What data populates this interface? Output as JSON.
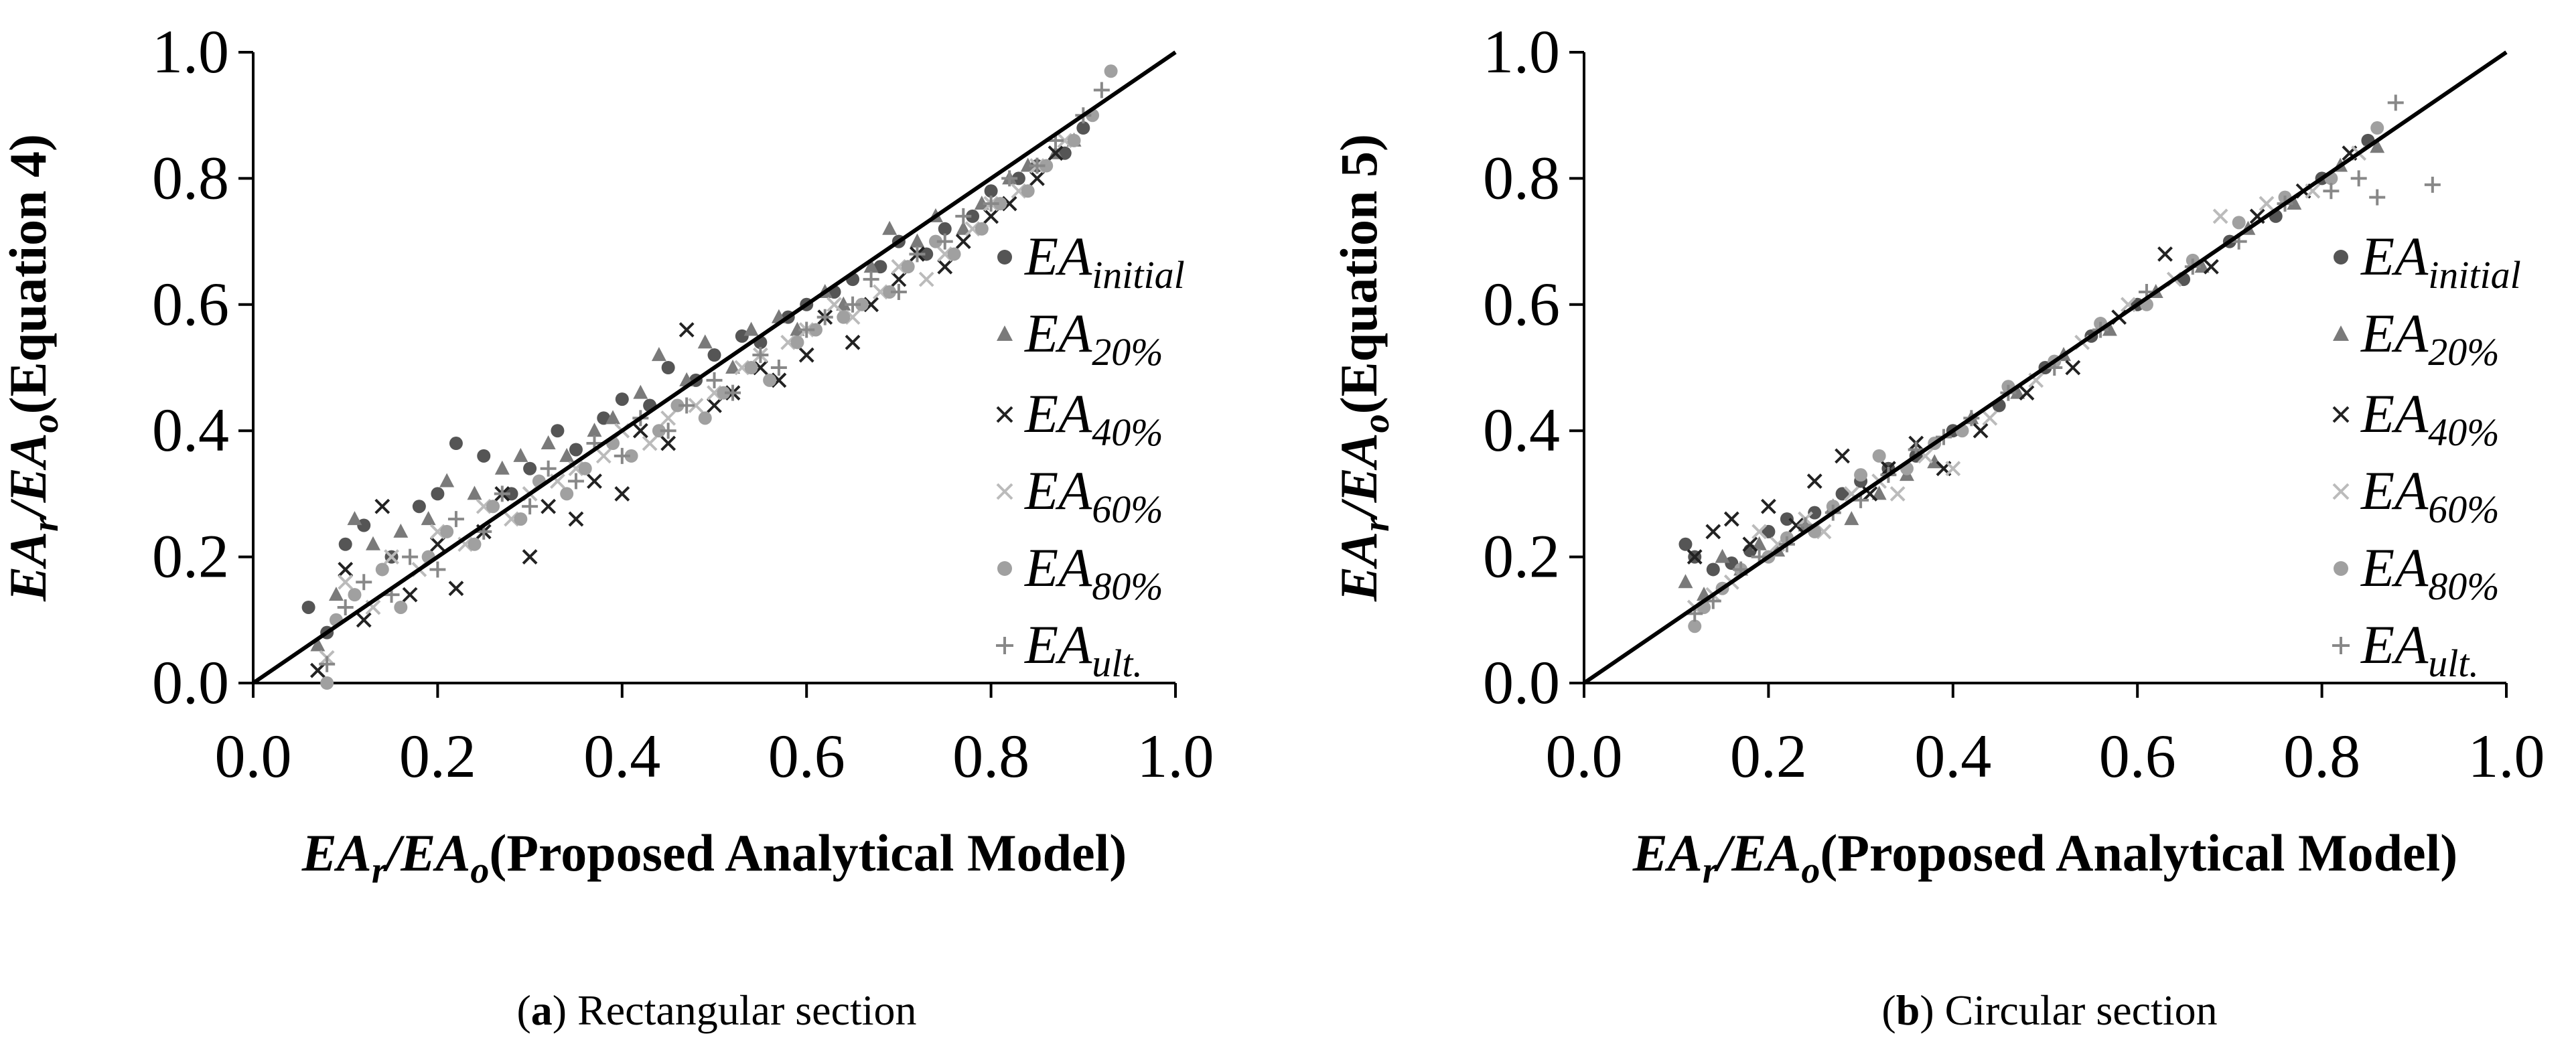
{
  "chart_data": [
    {
      "type": "scatter",
      "panel_label": "a",
      "caption": "Rectangular section",
      "xlabel_main": "EA",
      "xlabel_sub_r": "r",
      "xlabel_sub_o": "o",
      "xlabel_suffix": "(Proposed Analytical Model)",
      "ylabel_main": "EA",
      "ylabel_suffix": "(Equation 4)",
      "xlim": [
        0.0,
        1.0
      ],
      "ylim": [
        0.0,
        1.0
      ],
      "x_ticks": [
        "0.0",
        "0.2",
        "0.4",
        "0.6",
        "0.8",
        "1.0"
      ],
      "y_ticks": [
        "0.0",
        "0.2",
        "0.4",
        "0.6",
        "0.8",
        "1.0"
      ],
      "reference_line": {
        "name": "1:1 line",
        "x": [
          0.0,
          1.0
        ],
        "y": [
          0.0,
          1.0
        ]
      },
      "series": [
        {
          "name": "EA_initial",
          "label_main": "EA",
          "label_sub": "initial",
          "marker": "dot",
          "color": "#555555",
          "x": [
            0.06,
            0.08,
            0.1,
            0.12,
            0.15,
            0.18,
            0.2,
            0.22,
            0.25,
            0.28,
            0.3,
            0.33,
            0.35,
            0.38,
            0.4,
            0.43,
            0.45,
            0.48,
            0.5,
            0.53,
            0.55,
            0.58,
            0.6,
            0.63,
            0.65,
            0.68,
            0.7,
            0.73,
            0.75,
            0.78,
            0.8,
            0.83,
            0.85,
            0.88,
            0.9
          ],
          "y": [
            0.12,
            0.08,
            0.22,
            0.25,
            0.2,
            0.28,
            0.3,
            0.38,
            0.36,
            0.3,
            0.34,
            0.4,
            0.37,
            0.42,
            0.45,
            0.44,
            0.5,
            0.48,
            0.52,
            0.55,
            0.54,
            0.58,
            0.6,
            0.62,
            0.64,
            0.66,
            0.7,
            0.68,
            0.72,
            0.74,
            0.78,
            0.8,
            0.82,
            0.84,
            0.88
          ]
        },
        {
          "name": "EA_20%",
          "label_main": "EA",
          "label_sub": "20%",
          "marker": "triangle",
          "color": "#7a7a7a",
          "x": [
            0.07,
            0.09,
            0.11,
            0.13,
            0.16,
            0.19,
            0.21,
            0.24,
            0.27,
            0.29,
            0.32,
            0.34,
            0.37,
            0.39,
            0.42,
            0.44,
            0.47,
            0.49,
            0.52,
            0.54,
            0.57,
            0.59,
            0.62,
            0.64,
            0.67,
            0.69,
            0.72,
            0.74,
            0.77,
            0.79,
            0.82,
            0.84,
            0.87,
            0.89
          ],
          "y": [
            0.06,
            0.14,
            0.26,
            0.22,
            0.24,
            0.26,
            0.32,
            0.3,
            0.34,
            0.36,
            0.38,
            0.36,
            0.4,
            0.42,
            0.46,
            0.52,
            0.48,
            0.54,
            0.5,
            0.56,
            0.58,
            0.56,
            0.62,
            0.6,
            0.66,
            0.72,
            0.7,
            0.74,
            0.72,
            0.76,
            0.8,
            0.82,
            0.84,
            0.86
          ]
        },
        {
          "name": "EA_40%",
          "label_main": "EA",
          "label_sub": "40%",
          "marker": "x",
          "color": "#222222",
          "x": [
            0.07,
            0.1,
            0.12,
            0.14,
            0.17,
            0.2,
            0.22,
            0.25,
            0.27,
            0.3,
            0.32,
            0.35,
            0.37,
            0.4,
            0.42,
            0.45,
            0.47,
            0.5,
            0.52,
            0.55,
            0.57,
            0.6,
            0.62,
            0.65,
            0.67,
            0.7,
            0.72,
            0.75,
            0.77,
            0.8,
            0.82,
            0.85,
            0.87
          ],
          "y": [
            0.02,
            0.18,
            0.1,
            0.28,
            0.14,
            0.22,
            0.15,
            0.24,
            0.3,
            0.2,
            0.28,
            0.26,
            0.32,
            0.3,
            0.4,
            0.38,
            0.56,
            0.44,
            0.46,
            0.5,
            0.48,
            0.52,
            0.58,
            0.54,
            0.6,
            0.64,
            0.68,
            0.66,
            0.7,
            0.74,
            0.76,
            0.8,
            0.84
          ]
        },
        {
          "name": "EA_60%",
          "label_main": "EA",
          "label_sub": "60%",
          "marker": "x",
          "color": "#bbbbbb",
          "x": [
            0.08,
            0.1,
            0.13,
            0.15,
            0.18,
            0.2,
            0.23,
            0.25,
            0.28,
            0.3,
            0.33,
            0.35,
            0.38,
            0.4,
            0.43,
            0.45,
            0.48,
            0.5,
            0.53,
            0.55,
            0.58,
            0.6,
            0.63,
            0.65,
            0.68,
            0.7,
            0.73,
            0.75,
            0.78,
            0.8,
            0.83,
            0.85,
            0.88
          ],
          "y": [
            0.04,
            0.16,
            0.12,
            0.2,
            0.18,
            0.24,
            0.22,
            0.28,
            0.26,
            0.3,
            0.32,
            0.34,
            0.36,
            0.4,
            0.38,
            0.42,
            0.44,
            0.46,
            0.5,
            0.52,
            0.54,
            0.56,
            0.6,
            0.58,
            0.62,
            0.66,
            0.64,
            0.68,
            0.72,
            0.76,
            0.78,
            0.82,
            0.86
          ]
        },
        {
          "name": "EA_80%",
          "label_main": "EA",
          "label_sub": "80%",
          "marker": "dot",
          "color": "#a0a0a0",
          "x": [
            0.08,
            0.09,
            0.11,
            0.14,
            0.16,
            0.19,
            0.21,
            0.24,
            0.26,
            0.29,
            0.31,
            0.34,
            0.36,
            0.39,
            0.41,
            0.44,
            0.46,
            0.49,
            0.51,
            0.54,
            0.56,
            0.59,
            0.61,
            0.64,
            0.66,
            0.69,
            0.71,
            0.74,
            0.76,
            0.79,
            0.81,
            0.84,
            0.86,
            0.89,
            0.91,
            0.93
          ],
          "y": [
            0.0,
            0.1,
            0.14,
            0.18,
            0.12,
            0.2,
            0.24,
            0.22,
            0.28,
            0.26,
            0.32,
            0.3,
            0.34,
            0.38,
            0.36,
            0.4,
            0.44,
            0.42,
            0.46,
            0.5,
            0.48,
            0.54,
            0.56,
            0.58,
            0.6,
            0.62,
            0.66,
            0.7,
            0.68,
            0.72,
            0.76,
            0.78,
            0.82,
            0.86,
            0.9,
            0.97
          ]
        },
        {
          "name": "EA_ult.",
          "label_main": "EA",
          "label_sub": "ult.",
          "marker": "plus",
          "color": "#888888",
          "x": [
            0.08,
            0.1,
            0.12,
            0.15,
            0.17,
            0.2,
            0.22,
            0.25,
            0.27,
            0.3,
            0.32,
            0.35,
            0.37,
            0.4,
            0.42,
            0.45,
            0.47,
            0.5,
            0.52,
            0.55,
            0.57,
            0.6,
            0.62,
            0.65,
            0.67,
            0.7,
            0.72,
            0.75,
            0.77,
            0.8,
            0.82,
            0.85,
            0.87,
            0.9,
            0.92
          ],
          "y": [
            0.03,
            0.12,
            0.16,
            0.14,
            0.2,
            0.18,
            0.26,
            0.24,
            0.3,
            0.28,
            0.34,
            0.32,
            0.38,
            0.36,
            0.42,
            0.4,
            0.44,
            0.48,
            0.46,
            0.52,
            0.5,
            0.56,
            0.58,
            0.6,
            0.64,
            0.62,
            0.68,
            0.7,
            0.74,
            0.76,
            0.8,
            0.82,
            0.86,
            0.9,
            0.94
          ]
        }
      ]
    },
    {
      "type": "scatter",
      "panel_label": "b",
      "caption": "Circular section",
      "xlabel_main": "EA",
      "xlabel_sub_r": "r",
      "xlabel_sub_o": "o",
      "xlabel_suffix": "(Proposed Analytical Model)",
      "ylabel_main": "EA",
      "ylabel_suffix": "(Equation 5)",
      "xlim": [
        0.0,
        1.0
      ],
      "ylim": [
        0.0,
        1.0
      ],
      "x_ticks": [
        "0.0",
        "0.2",
        "0.4",
        "0.6",
        "0.8",
        "1.0"
      ],
      "y_ticks": [
        "0.0",
        "0.2",
        "0.4",
        "0.6",
        "0.8",
        "1.0"
      ],
      "reference_line": {
        "name": "1:1 line",
        "x": [
          0.0,
          1.0
        ],
        "y": [
          0.0,
          1.0
        ]
      },
      "series": [
        {
          "name": "EA_initial",
          "label_main": "EA",
          "label_sub": "initial",
          "marker": "dot",
          "color": "#555555",
          "x": [
            0.11,
            0.12,
            0.14,
            0.16,
            0.18,
            0.2,
            0.22,
            0.25,
            0.28,
            0.3,
            0.33,
            0.36,
            0.4,
            0.45,
            0.5,
            0.55,
            0.6,
            0.65,
            0.7,
            0.75,
            0.8,
            0.85
          ],
          "y": [
            0.22,
            0.2,
            0.18,
            0.19,
            0.21,
            0.24,
            0.26,
            0.27,
            0.3,
            0.32,
            0.34,
            0.36,
            0.4,
            0.44,
            0.5,
            0.55,
            0.6,
            0.64,
            0.7,
            0.74,
            0.8,
            0.86
          ]
        },
        {
          "name": "EA_20%",
          "label_main": "EA",
          "label_sub": "20%",
          "marker": "triangle",
          "color": "#7a7a7a",
          "x": [
            0.11,
            0.13,
            0.15,
            0.17,
            0.19,
            0.21,
            0.24,
            0.27,
            0.29,
            0.32,
            0.35,
            0.38,
            0.42,
            0.47,
            0.52,
            0.57,
            0.62,
            0.67,
            0.72,
            0.77,
            0.82,
            0.86
          ],
          "y": [
            0.16,
            0.14,
            0.2,
            0.18,
            0.22,
            0.21,
            0.25,
            0.28,
            0.26,
            0.3,
            0.33,
            0.35,
            0.42,
            0.46,
            0.52,
            0.56,
            0.62,
            0.66,
            0.72,
            0.76,
            0.82,
            0.85
          ]
        },
        {
          "name": "EA_40%",
          "label_main": "EA",
          "label_sub": "40%",
          "marker": "x",
          "color": "#222222",
          "x": [
            0.12,
            0.14,
            0.16,
            0.18,
            0.2,
            0.23,
            0.25,
            0.28,
            0.31,
            0.33,
            0.36,
            0.39,
            0.43,
            0.48,
            0.53,
            0.58,
            0.63,
            0.68,
            0.73,
            0.78,
            0.83
          ],
          "y": [
            0.2,
            0.24,
            0.26,
            0.22,
            0.28,
            0.25,
            0.32,
            0.36,
            0.3,
            0.34,
            0.38,
            0.34,
            0.4,
            0.46,
            0.5,
            0.58,
            0.68,
            0.66,
            0.74,
            0.78,
            0.84
          ]
        },
        {
          "name": "EA_60%",
          "label_main": "EA",
          "label_sub": "60%",
          "marker": "x",
          "color": "#bbbbbb",
          "x": [
            0.12,
            0.14,
            0.16,
            0.19,
            0.21,
            0.24,
            0.26,
            0.29,
            0.32,
            0.34,
            0.37,
            0.4,
            0.44,
            0.49,
            0.54,
            0.59,
            0.64,
            0.69,
            0.74,
            0.79,
            0.84
          ],
          "y": [
            0.12,
            0.14,
            0.16,
            0.24,
            0.22,
            0.26,
            0.24,
            0.3,
            0.32,
            0.3,
            0.36,
            0.34,
            0.42,
            0.48,
            0.54,
            0.6,
            0.64,
            0.74,
            0.76,
            0.78,
            0.84
          ]
        },
        {
          "name": "EA_80%",
          "label_main": "EA",
          "label_sub": "80%",
          "marker": "dot",
          "color": "#a0a0a0",
          "x": [
            0.12,
            0.13,
            0.15,
            0.17,
            0.2,
            0.22,
            0.25,
            0.27,
            0.3,
            0.32,
            0.35,
            0.38,
            0.41,
            0.46,
            0.51,
            0.56,
            0.61,
            0.66,
            0.71,
            0.76,
            0.81,
            0.86
          ],
          "y": [
            0.09,
            0.12,
            0.15,
            0.18,
            0.2,
            0.23,
            0.24,
            0.28,
            0.33,
            0.36,
            0.34,
            0.38,
            0.4,
            0.47,
            0.51,
            0.57,
            0.6,
            0.67,
            0.73,
            0.77,
            0.8,
            0.88
          ]
        },
        {
          "name": "EA_ult.",
          "label_main": "EA",
          "label_sub": "ult.",
          "marker": "plus",
          "color": "#888888",
          "x": [
            0.12,
            0.14,
            0.17,
            0.19,
            0.22,
            0.24,
            0.27,
            0.3,
            0.33,
            0.36,
            0.39,
            0.42,
            0.46,
            0.51,
            0.56,
            0.61,
            0.66,
            0.71,
            0.76,
            0.81,
            0.84,
            0.86,
            0.88,
            0.92
          ],
          "y": [
            0.11,
            0.13,
            0.18,
            0.2,
            0.22,
            0.25,
            0.27,
            0.29,
            0.33,
            0.37,
            0.39,
            0.42,
            0.46,
            0.5,
            0.56,
            0.62,
            0.66,
            0.7,
            0.76,
            0.78,
            0.8,
            0.77,
            0.92,
            0.79
          ]
        }
      ]
    }
  ]
}
